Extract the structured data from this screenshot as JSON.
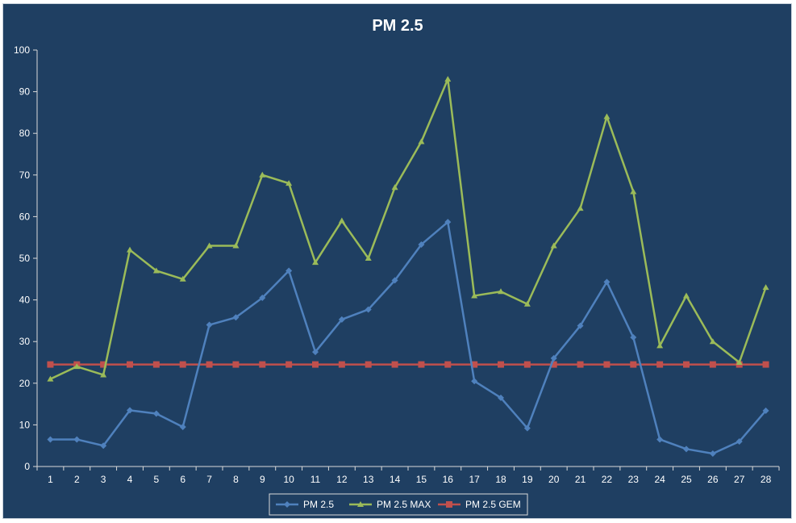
{
  "chart_data": {
    "type": "line",
    "title": "PM 2.5",
    "xlabel": "",
    "ylabel": "",
    "ylim": [
      0,
      100
    ],
    "y_ticks": [
      "0",
      "10",
      "20",
      "30",
      "40",
      "50",
      "60",
      "70",
      "80",
      "90",
      "100"
    ],
    "categories": [
      "1",
      "2",
      "3",
      "4",
      "5",
      "6",
      "7",
      "8",
      "9",
      "10",
      "11",
      "12",
      "13",
      "14",
      "15",
      "16",
      "17",
      "18",
      "19",
      "20",
      "21",
      "22",
      "23",
      "24",
      "25",
      "26",
      "27",
      "28"
    ],
    "grid": false,
    "legend_position": "bottom",
    "series": [
      {
        "name": "PM 2.5",
        "color": "#4f81bd",
        "marker": "diamond",
        "values": [
          6.5,
          6.5,
          5,
          13.5,
          12.7,
          9.5,
          34,
          35.8,
          40.5,
          47,
          27.5,
          35.3,
          37.7,
          44.7,
          53.3,
          58.7,
          20.5,
          16.5,
          9.2,
          26,
          33.8,
          44.3,
          31,
          6.5,
          4.2,
          3.1,
          6,
          13.4
        ]
      },
      {
        "name": "PM 2.5 MAX",
        "color": "#9bbb59",
        "marker": "triangle",
        "values": [
          21,
          24,
          22,
          52,
          47,
          45,
          53,
          53,
          70,
          68,
          49,
          59,
          50,
          67,
          78,
          93,
          41,
          42,
          39,
          53,
          62,
          84,
          66,
          29,
          41,
          30,
          25,
          43
        ]
      },
      {
        "name": "PM 2.5 GEM",
        "color": "#c0504d",
        "marker": "square",
        "values": [
          24.5,
          24.5,
          24.5,
          24.5,
          24.5,
          24.5,
          24.5,
          24.5,
          24.5,
          24.5,
          24.5,
          24.5,
          24.5,
          24.5,
          24.5,
          24.5,
          24.5,
          24.5,
          24.5,
          24.5,
          24.5,
          24.5,
          24.5,
          24.5,
          24.5,
          24.5,
          24.5,
          24.5
        ]
      }
    ]
  }
}
